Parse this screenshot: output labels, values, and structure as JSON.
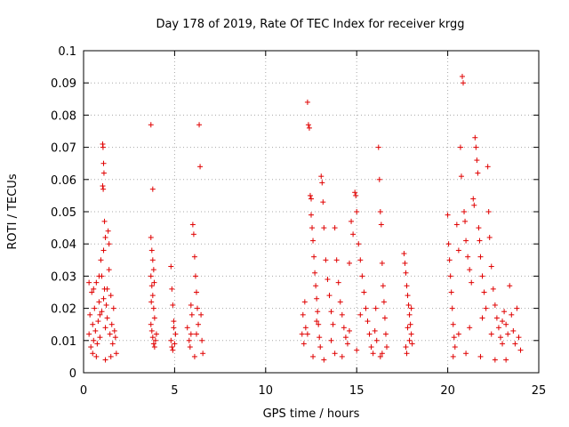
{
  "chart_data": {
    "type": "scatter",
    "title": "Day 178 of 2019, Rate Of TEC Index for receiver krgg",
    "xlabel": "GPS time / hours",
    "ylabel": "ROTI / TECUs",
    "xlim": [
      0,
      25
    ],
    "ylim": [
      0,
      0.1
    ],
    "x_ticks": [
      0,
      5,
      10,
      15,
      20,
      25
    ],
    "x_tick_labels": [
      "0",
      "5",
      "10",
      "15",
      "20",
      "25"
    ],
    "y_ticks": [
      0,
      0.01,
      0.02,
      0.03,
      0.04,
      0.05,
      0.06,
      0.07,
      0.08,
      0.09,
      0.1
    ],
    "y_tick_labels": [
      "0",
      "0.01",
      "0.02",
      "0.03",
      "0.04",
      "0.05",
      "0.06",
      "0.07",
      "0.08",
      "0.09",
      "0.1"
    ],
    "grid": true,
    "marker": "+",
    "marker_color": "#e00000",
    "series": [
      {
        "name": "ROTI",
        "points": [
          [
            0.3,
            0.012
          ],
          [
            0.35,
            0.018
          ],
          [
            0.4,
            0.008
          ],
          [
            0.45,
            0.025
          ],
          [
            0.5,
            0.015
          ],
          [
            0.55,
            0.01
          ],
          [
            0.6,
            0.02
          ],
          [
            0.65,
            0.013
          ],
          [
            0.7,
            0.028
          ],
          [
            0.75,
            0.009
          ],
          [
            0.8,
            0.016
          ],
          [
            0.85,
            0.022
          ],
          [
            0.9,
            0.011
          ],
          [
            0.95,
            0.035
          ],
          [
            1.0,
            0.019
          ],
          [
            1.05,
            0.071
          ],
          [
            1.07,
            0.07
          ],
          [
            1.1,
            0.065
          ],
          [
            1.12,
            0.062
          ],
          [
            1.05,
            0.058
          ],
          [
            1.08,
            0.057
          ],
          [
            1.15,
            0.047
          ],
          [
            1.2,
            0.042
          ],
          [
            1.1,
            0.038
          ],
          [
            1.0,
            0.03
          ],
          [
            1.15,
            0.026
          ],
          [
            1.2,
            0.014
          ],
          [
            1.25,
            0.021
          ],
          [
            1.3,
            0.017
          ],
          [
            1.35,
            0.044
          ],
          [
            1.4,
            0.04
          ],
          [
            1.4,
            0.032
          ],
          [
            1.45,
            0.012
          ],
          [
            1.5,
            0.024
          ],
          [
            1.55,
            0.015
          ],
          [
            1.6,
            0.009
          ],
          [
            1.65,
            0.02
          ],
          [
            1.7,
            0.013
          ],
          [
            1.75,
            0.011
          ],
          [
            1.8,
            0.006
          ],
          [
            0.5,
            0.006
          ],
          [
            0.7,
            0.005
          ],
          [
            1.2,
            0.004
          ],
          [
            1.5,
            0.005
          ],
          [
            0.3,
            0.028
          ],
          [
            0.55,
            0.026
          ],
          [
            0.85,
            0.03
          ],
          [
            1.3,
            0.026
          ],
          [
            1.1,
            0.023
          ],
          [
            0.9,
            0.018
          ],
          [
            3.7,
            0.077
          ],
          [
            3.8,
            0.057
          ],
          [
            3.7,
            0.042
          ],
          [
            3.75,
            0.038
          ],
          [
            3.8,
            0.035
          ],
          [
            3.85,
            0.032
          ],
          [
            3.7,
            0.03
          ],
          [
            3.75,
            0.027
          ],
          [
            3.8,
            0.024
          ],
          [
            3.85,
            0.02
          ],
          [
            3.9,
            0.017
          ],
          [
            3.7,
            0.015
          ],
          [
            3.75,
            0.013
          ],
          [
            3.8,
            0.011
          ],
          [
            3.85,
            0.009
          ],
          [
            3.9,
            0.008
          ],
          [
            3.95,
            0.01
          ],
          [
            4.0,
            0.012
          ],
          [
            3.72,
            0.022
          ],
          [
            3.88,
            0.028
          ],
          [
            4.8,
            0.033
          ],
          [
            4.85,
            0.026
          ],
          [
            4.9,
            0.021
          ],
          [
            4.95,
            0.016
          ],
          [
            4.8,
            0.01
          ],
          [
            4.85,
            0.008
          ],
          [
            4.9,
            0.007
          ],
          [
            5.0,
            0.009
          ],
          [
            5.05,
            0.012
          ],
          [
            4.95,
            0.014
          ],
          [
            5.7,
            0.014
          ],
          [
            5.8,
            0.01
          ],
          [
            5.85,
            0.008
          ],
          [
            5.9,
            0.012
          ],
          [
            5.95,
            0.018
          ],
          [
            6.0,
            0.046
          ],
          [
            6.05,
            0.043
          ],
          [
            6.1,
            0.036
          ],
          [
            6.15,
            0.03
          ],
          [
            6.2,
            0.025
          ],
          [
            6.25,
            0.02
          ],
          [
            6.3,
            0.015
          ],
          [
            6.35,
            0.077
          ],
          [
            6.4,
            0.064
          ],
          [
            6.45,
            0.018
          ],
          [
            6.5,
            0.01
          ],
          [
            6.55,
            0.006
          ],
          [
            6.1,
            0.005
          ],
          [
            5.9,
            0.021
          ],
          [
            6.2,
            0.012
          ],
          [
            12.0,
            0.012
          ],
          [
            12.05,
            0.018
          ],
          [
            12.1,
            0.009
          ],
          [
            12.15,
            0.022
          ],
          [
            12.2,
            0.014
          ],
          [
            12.3,
            0.084
          ],
          [
            12.35,
            0.077
          ],
          [
            12.4,
            0.076
          ],
          [
            12.45,
            0.055
          ],
          [
            12.5,
            0.054
          ],
          [
            12.5,
            0.049
          ],
          [
            12.55,
            0.045
          ],
          [
            12.6,
            0.041
          ],
          [
            12.65,
            0.036
          ],
          [
            12.7,
            0.031
          ],
          [
            12.75,
            0.027
          ],
          [
            12.8,
            0.023
          ],
          [
            12.85,
            0.019
          ],
          [
            12.9,
            0.015
          ],
          [
            12.95,
            0.011
          ],
          [
            13.0,
            0.008
          ],
          [
            13.05,
            0.061
          ],
          [
            13.1,
            0.059
          ],
          [
            13.15,
            0.053
          ],
          [
            13.2,
            0.045
          ],
          [
            13.3,
            0.035
          ],
          [
            13.4,
            0.029
          ],
          [
            13.5,
            0.024
          ],
          [
            13.6,
            0.019
          ],
          [
            13.7,
            0.015
          ],
          [
            13.8,
            0.045
          ],
          [
            13.9,
            0.035
          ],
          [
            14.0,
            0.028
          ],
          [
            14.1,
            0.022
          ],
          [
            14.2,
            0.018
          ],
          [
            14.3,
            0.014
          ],
          [
            14.4,
            0.011
          ],
          [
            14.5,
            0.009
          ],
          [
            14.6,
            0.034
          ],
          [
            14.7,
            0.047
          ],
          [
            14.8,
            0.043
          ],
          [
            14.9,
            0.056
          ],
          [
            14.95,
            0.055
          ],
          [
            15.0,
            0.05
          ],
          [
            15.1,
            0.04
          ],
          [
            15.2,
            0.035
          ],
          [
            15.3,
            0.03
          ],
          [
            15.4,
            0.025
          ],
          [
            15.5,
            0.02
          ],
          [
            15.6,
            0.016
          ],
          [
            15.7,
            0.012
          ],
          [
            15.8,
            0.008
          ],
          [
            15.9,
            0.006
          ],
          [
            12.6,
            0.005
          ],
          [
            13.2,
            0.004
          ],
          [
            13.8,
            0.006
          ],
          [
            14.2,
            0.005
          ],
          [
            15.0,
            0.007
          ],
          [
            12.3,
            0.012
          ],
          [
            12.8,
            0.016
          ],
          [
            13.6,
            0.01
          ],
          [
            14.6,
            0.013
          ],
          [
            15.2,
            0.018
          ],
          [
            16.0,
            0.013
          ],
          [
            16.05,
            0.02
          ],
          [
            16.1,
            0.01
          ],
          [
            16.2,
            0.07
          ],
          [
            16.25,
            0.06
          ],
          [
            16.3,
            0.05
          ],
          [
            16.35,
            0.046
          ],
          [
            16.4,
            0.034
          ],
          [
            16.45,
            0.027
          ],
          [
            16.5,
            0.022
          ],
          [
            16.55,
            0.017
          ],
          [
            16.6,
            0.012
          ],
          [
            16.65,
            0.008
          ],
          [
            16.3,
            0.005
          ],
          [
            16.4,
            0.006
          ],
          [
            17.6,
            0.037
          ],
          [
            17.65,
            0.034
          ],
          [
            17.7,
            0.031
          ],
          [
            17.75,
            0.027
          ],
          [
            17.8,
            0.024
          ],
          [
            17.85,
            0.021
          ],
          [
            17.9,
            0.018
          ],
          [
            17.95,
            0.015
          ],
          [
            18.0,
            0.012
          ],
          [
            18.05,
            0.009
          ],
          [
            17.7,
            0.008
          ],
          [
            17.9,
            0.01
          ],
          [
            18.0,
            0.02
          ],
          [
            17.8,
            0.014
          ],
          [
            17.75,
            0.006
          ],
          [
            20.0,
            0.049
          ],
          [
            20.05,
            0.04
          ],
          [
            20.1,
            0.035
          ],
          [
            20.15,
            0.03
          ],
          [
            20.2,
            0.025
          ],
          [
            20.25,
            0.02
          ],
          [
            20.3,
            0.015
          ],
          [
            20.35,
            0.011
          ],
          [
            20.4,
            0.008
          ],
          [
            20.5,
            0.046
          ],
          [
            20.6,
            0.038
          ],
          [
            20.7,
            0.07
          ],
          [
            20.75,
            0.061
          ],
          [
            20.8,
            0.092
          ],
          [
            20.85,
            0.09
          ],
          [
            20.9,
            0.05
          ],
          [
            20.95,
            0.047
          ],
          [
            21.0,
            0.041
          ],
          [
            21.1,
            0.036
          ],
          [
            21.2,
            0.032
          ],
          [
            21.3,
            0.028
          ],
          [
            21.4,
            0.054
          ],
          [
            21.45,
            0.052
          ],
          [
            21.5,
            0.073
          ],
          [
            21.55,
            0.07
          ],
          [
            21.6,
            0.066
          ],
          [
            21.65,
            0.062
          ],
          [
            21.7,
            0.045
          ],
          [
            21.75,
            0.041
          ],
          [
            21.8,
            0.036
          ],
          [
            21.9,
            0.03
          ],
          [
            22.0,
            0.025
          ],
          [
            22.1,
            0.02
          ],
          [
            22.2,
            0.064
          ],
          [
            22.25,
            0.05
          ],
          [
            22.3,
            0.042
          ],
          [
            22.4,
            0.033
          ],
          [
            22.5,
            0.026
          ],
          [
            22.6,
            0.021
          ],
          [
            22.7,
            0.017
          ],
          [
            22.8,
            0.014
          ],
          [
            22.9,
            0.011
          ],
          [
            23.0,
            0.009
          ],
          [
            23.1,
            0.019
          ],
          [
            23.2,
            0.015
          ],
          [
            23.3,
            0.012
          ],
          [
            23.4,
            0.027
          ],
          [
            23.5,
            0.018
          ],
          [
            23.6,
            0.013
          ],
          [
            23.7,
            0.009
          ],
          [
            23.8,
            0.02
          ],
          [
            23.9,
            0.011
          ],
          [
            24.0,
            0.007
          ],
          [
            20.3,
            0.005
          ],
          [
            21.0,
            0.006
          ],
          [
            21.8,
            0.005
          ],
          [
            22.6,
            0.004
          ],
          [
            23.2,
            0.004
          ],
          [
            20.6,
            0.012
          ],
          [
            21.2,
            0.014
          ],
          [
            21.9,
            0.017
          ],
          [
            22.4,
            0.012
          ],
          [
            23.0,
            0.016
          ]
        ]
      }
    ]
  }
}
